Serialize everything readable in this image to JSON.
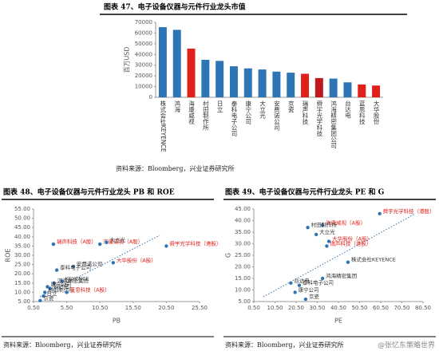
{
  "chart_data": [
    {
      "type": "bar",
      "title": "图表 47、电子设备仪器与元件行业龙头市值",
      "y_label": "百万USD",
      "categories": [
        "株式会社KEYENCE",
        "鸿海",
        "海康威视",
        "村田制作所",
        "日立",
        "泰科电子公司",
        "康宁公司",
        "大立光",
        "安费诺公司",
        "京瓷",
        "瑞声科技",
        "舜宇光学科技",
        "鸿海精密集团公司",
        "台达电",
        "蓝思科技",
        "大华股份"
      ],
      "values": [
        65500,
        63000,
        45500,
        35000,
        34000,
        29000,
        27000,
        26000,
        24000,
        23000,
        22000,
        18000,
        17500,
        14000,
        12000,
        11000
      ],
      "colors": [
        "#2e75b6",
        "#2e75b6",
        "#e0211b",
        "#2e75b6",
        "#2e75b6",
        "#2e75b6",
        "#2e75b6",
        "#2e75b6",
        "#2e75b6",
        "#2e75b6",
        "#e0211b",
        "#c0181f",
        "#2e75b6",
        "#2e75b6",
        "#e0211b",
        "#e0211b"
      ],
      "ylim": [
        0,
        70000
      ],
      "yticks": [
        0,
        10000,
        20000,
        30000,
        40000,
        50000,
        60000,
        70000
      ],
      "grid": false,
      "source": "资料来源：Bloomberg，兴业证券研究所"
    },
    {
      "type": "scatter",
      "title": "图表 48、电子设备仪器与元件行业龙头 PB 和 ROE",
      "x_label": "PB",
      "y_label": "ROE",
      "labels": [
        "海康威视（A股）",
        "舜宇光学科技（港股）",
        "瑞声科技（A股）",
        "大立光",
        "安费诺公司",
        "泰科电子公司",
        "大华股份（A股）",
        "KEYENCE",
        "鸿海精密集团",
        "台达电",
        "村田制作所",
        "康宁公司",
        "蓝思科技（A股）",
        "日立",
        "京瓷"
      ],
      "x": [
        10.5,
        20.5,
        3.5,
        11.5,
        6.5,
        4.0,
        12.5,
        4.8,
        3.6,
        3.0,
        2.2,
        2.6,
        5.5,
        2.0,
        1.5
      ],
      "values": [
        36,
        35,
        36,
        37,
        24,
        22,
        26,
        16,
        15,
        12,
        10,
        13,
        10,
        8,
        5.5
      ],
      "color": "#2e75b6",
      "label_colors": [
        "#e0211b",
        "#e0211b",
        "#e0211b",
        "#333333",
        "#333333",
        "#333333",
        "#e0211b",
        "#333333",
        "#333333",
        "#333333",
        "#333333",
        "#333333",
        "#e0211b",
        "#333333",
        "#333333"
      ],
      "xlim": [
        0.5,
        25.5
      ],
      "xticks": [
        {
          "value": 0.5,
          "label": "0.50"
        },
        {
          "value": 5.5,
          "label": "5.50"
        },
        {
          "value": 10.5,
          "label": "10.50"
        },
        {
          "value": 15.5,
          "label": "15.50"
        },
        {
          "value": 20.5,
          "label": "20.50"
        },
        {
          "value": 25.5,
          "label": "25.50"
        }
      ],
      "ylim": [
        5,
        55
      ],
      "yticks": [
        {
          "value": 5,
          "label": "5.00"
        },
        {
          "value": 10,
          "label": "10.00"
        },
        {
          "value": 15,
          "label": "15.00"
        },
        {
          "value": 20,
          "label": "20.00"
        },
        {
          "value": 25,
          "label": "25.00"
        },
        {
          "value": 30,
          "label": "30.00"
        },
        {
          "value": 35,
          "label": "35.00"
        },
        {
          "value": 40,
          "label": "40.00"
        },
        {
          "value": 45,
          "label": "45.00"
        },
        {
          "value": 50,
          "label": "50.00"
        },
        {
          "value": 55,
          "label": "55.00"
        }
      ],
      "source": "资料来源：Bloomberg，兴业证券研究所"
    },
    {
      "type": "scatter",
      "title": "图表 49、电子设备仪器与元件行业龙头 PE 和 G",
      "x_label": "PE",
      "y_label": "G",
      "labels": [
        "舜宇光学科技（港股）",
        "海康威视（A股）",
        "村田制作所",
        "大立光",
        "瑞声科技（港股）",
        "大华股份（A股）",
        "株式会社KEYENCE",
        "鸿海精密集团",
        "台达电",
        "泰科电子公司",
        "康宁公司",
        "京瓷"
      ],
      "x": [
        60,
        33,
        26,
        30,
        35,
        36,
        45,
        33,
        18,
        22,
        20,
        25
      ],
      "values": [
        43,
        38,
        37,
        34,
        29,
        31,
        22,
        15,
        13,
        12,
        9,
        6
      ],
      "color": "#2e75b6",
      "label_colors": [
        "#e0211b",
        "#e0211b",
        "#333333",
        "#333333",
        "#e0211b",
        "#e0211b",
        "#333333",
        "#333333",
        "#333333",
        "#333333",
        "#333333",
        "#333333"
      ],
      "xlim": [
        0.5,
        80.5
      ],
      "xticks": [
        {
          "value": 0.5,
          "label": "0.50"
        },
        {
          "value": 10.5,
          "label": "10.50"
        },
        {
          "value": 20.5,
          "label": "20.50"
        },
        {
          "value": 30.5,
          "label": "30.50"
        },
        {
          "value": 40.5,
          "label": "40.50"
        },
        {
          "value": 50.5,
          "label": "50.50"
        },
        {
          "value": 60.5,
          "label": "60.50"
        },
        {
          "value": 70.5,
          "label": "70.50"
        },
        {
          "value": 80.5,
          "label": "80.50"
        }
      ],
      "ylim": [
        5,
        45
      ],
      "yticks": [
        {
          "value": 5,
          "label": "5.00"
        },
        {
          "value": 10,
          "label": "10.00"
        },
        {
          "value": 15,
          "label": "15.00"
        },
        {
          "value": 20,
          "label": "20.00"
        },
        {
          "value": 25,
          "label": "25.00"
        },
        {
          "value": 30,
          "label": "30.00"
        },
        {
          "value": 35,
          "label": "35.00"
        },
        {
          "value": 40,
          "label": "40.00"
        },
        {
          "value": 45,
          "label": "45.00"
        }
      ],
      "source": "资料来源：Bloomberg，兴业证券研究所"
    }
  ],
  "watermark": "@张忆东策略世界"
}
